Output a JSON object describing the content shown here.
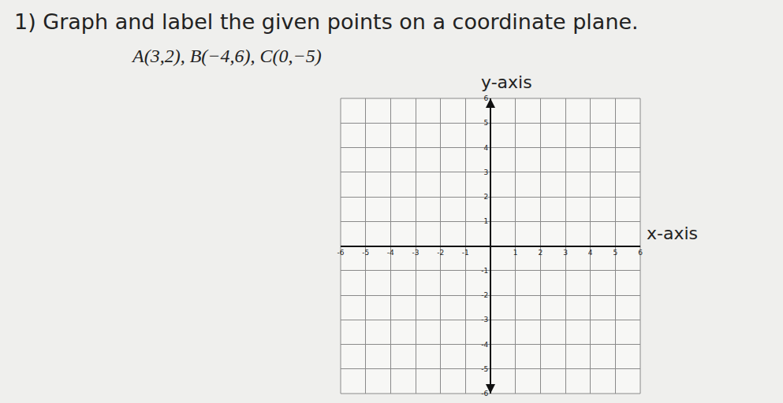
{
  "problem": {
    "number": "1)",
    "instruction": "Graph and label the given points on a coordinate plane.",
    "points": "A(3,2), B(−4,6), C(0,−5)"
  },
  "chart_data": {
    "type": "scatter",
    "xlabel": "x-axis",
    "ylabel": "y-axis",
    "xlim": [
      -6,
      6
    ],
    "ylim": [
      -6,
      6
    ],
    "xticks": [
      -6,
      -5,
      -4,
      -3,
      -2,
      -1,
      1,
      2,
      3,
      4,
      5,
      6
    ],
    "yticks": [
      -6,
      -5,
      -4,
      -3,
      -2,
      -1,
      1,
      2,
      3,
      4,
      5,
      6
    ],
    "grid": true
  }
}
